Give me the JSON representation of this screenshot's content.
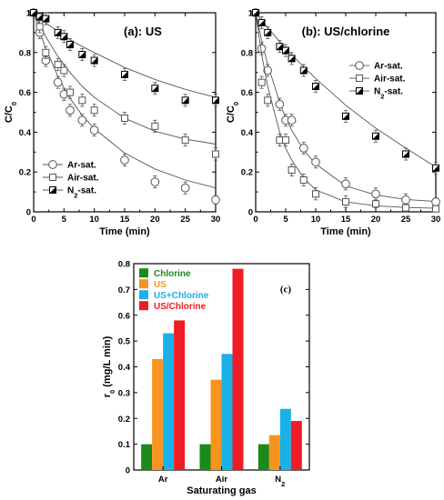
{
  "chart_data": [
    {
      "type": "line",
      "title": "(a): US",
      "xlabel": "Time (min)",
      "ylabel": "C/C",
      "ylabel_sub": "0",
      "xlim": [
        0,
        30
      ],
      "ylim": [
        0,
        1
      ],
      "xticks": [
        "0",
        "5",
        "10",
        "15",
        "20",
        "25",
        "30"
      ],
      "yticks": [
        "0",
        "0.2",
        "0.4",
        "0.6",
        "0.8",
        "1"
      ],
      "legend_position": "bottom-left",
      "x": [
        0,
        1,
        2,
        4,
        5,
        6,
        8,
        10,
        15,
        20,
        25,
        30
      ],
      "series": [
        {
          "name": "Ar-sat.",
          "marker": "circle",
          "values": [
            1.0,
            0.9,
            0.76,
            0.65,
            0.59,
            0.51,
            0.46,
            0.41,
            0.26,
            0.15,
            0.12,
            0.06
          ],
          "errors": [
            0.01,
            0.03,
            0.03,
            0.03,
            0.03,
            0.03,
            0.03,
            0.03,
            0.03,
            0.03,
            0.03,
            0.02
          ],
          "fit": [
            1.0,
            0.905,
            0.82,
            0.68,
            0.623,
            0.57,
            0.485,
            0.418,
            0.295,
            0.215,
            0.16,
            0.12
          ]
        },
        {
          "name": "Air-sat.",
          "marker": "square",
          "values": [
            1.0,
            0.93,
            0.8,
            0.74,
            0.71,
            0.6,
            0.56,
            0.51,
            0.47,
            0.43,
            0.36,
            0.29
          ],
          "errors": [
            0.01,
            0.03,
            0.03,
            0.03,
            0.03,
            0.03,
            0.03,
            0.03,
            0.03,
            0.03,
            0.03,
            0.03
          ],
          "fit": [
            1.0,
            0.94,
            0.88,
            0.78,
            0.74,
            0.7,
            0.63,
            0.575,
            0.47,
            0.405,
            0.365,
            0.34
          ]
        },
        {
          "name": "N₂-sat.",
          "label_base": "N",
          "label_sub": "2",
          "label_tail": "-sat.",
          "marker": "half-square",
          "values": [
            1.0,
            0.98,
            0.97,
            0.9,
            0.88,
            0.84,
            0.79,
            0.76,
            0.69,
            0.62,
            0.56,
            0.56
          ],
          "errors": [
            0.01,
            0.02,
            0.03,
            0.03,
            0.03,
            0.03,
            0.03,
            0.03,
            0.03,
            0.03,
            0.03,
            0.03
          ],
          "fit": [
            1.0,
            0.975,
            0.95,
            0.905,
            0.885,
            0.865,
            0.83,
            0.8,
            0.725,
            0.665,
            0.615,
            0.575
          ]
        }
      ]
    },
    {
      "type": "line",
      "title": "(b): US/chlorine",
      "xlabel": "Time (min)",
      "ylabel": "C/C",
      "ylabel_sub": "0",
      "xlim": [
        0,
        30
      ],
      "ylim": [
        0,
        1
      ],
      "xticks": [
        "0",
        "5",
        "10",
        "15",
        "20",
        "25",
        "30"
      ],
      "yticks": [
        "0",
        "0.2",
        "0.4",
        "0.6",
        "0.8",
        "1"
      ],
      "legend_position": "top-right",
      "x": [
        0,
        1,
        2,
        4,
        5,
        6,
        8,
        10,
        15,
        20,
        25,
        30
      ],
      "series": [
        {
          "name": "Ar-sat.",
          "marker": "circle",
          "values": [
            1.0,
            0.82,
            0.71,
            0.54,
            0.46,
            0.46,
            0.32,
            0.25,
            0.14,
            0.09,
            0.06,
            0.05
          ],
          "errors": [
            0.01,
            0.03,
            0.03,
            0.03,
            0.03,
            0.03,
            0.03,
            0.03,
            0.03,
            0.03,
            0.03,
            0.02
          ],
          "fit": [
            1.0,
            0.86,
            0.74,
            0.55,
            0.47,
            0.41,
            0.31,
            0.24,
            0.13,
            0.085,
            0.062,
            0.052
          ]
        },
        {
          "name": "Air-sat.",
          "marker": "square",
          "values": [
            1.0,
            0.65,
            0.56,
            0.36,
            0.36,
            0.21,
            0.16,
            0.09,
            0.05,
            0.04,
            0.02,
            0.015
          ],
          "errors": [
            0.01,
            0.03,
            0.03,
            0.03,
            0.03,
            0.03,
            0.03,
            0.03,
            0.03,
            0.02,
            0.02,
            0.01
          ],
          "fit": [
            1.0,
            0.79,
            0.63,
            0.4,
            0.32,
            0.26,
            0.17,
            0.11,
            0.05,
            0.03,
            0.022,
            0.018
          ]
        },
        {
          "name": "N₂-sat.",
          "label_base": "N",
          "label_sub": "2",
          "label_tail": "-sat.",
          "marker": "half-square",
          "values": [
            1.0,
            0.95,
            0.9,
            0.83,
            0.81,
            0.77,
            0.71,
            0.63,
            0.48,
            0.38,
            0.29,
            0.22
          ],
          "errors": [
            0.01,
            0.03,
            0.03,
            0.03,
            0.03,
            0.03,
            0.03,
            0.03,
            0.03,
            0.03,
            0.03,
            0.03
          ],
          "fit": [
            1.0,
            0.96,
            0.925,
            0.855,
            0.822,
            0.79,
            0.728,
            0.67,
            0.535,
            0.42,
            0.32,
            0.225
          ]
        }
      ]
    },
    {
      "type": "bar",
      "title": "(c)",
      "xlabel": "Saturating gas",
      "ylabel": "r",
      "ylabel_sub": "0",
      "ylabel_tail": " (mg/L min)",
      "ylim": [
        0,
        0.8
      ],
      "yticks": [
        "0",
        "0.1",
        "0.2",
        "0.3",
        "0.4",
        "0.5",
        "0.6",
        "0.7",
        "0.8"
      ],
      "legend_position": "top-left",
      "categories": [
        {
          "base": "Ar",
          "sub": ""
        },
        {
          "base": "Air",
          "sub": ""
        },
        {
          "base": "N",
          "sub": "2"
        }
      ],
      "series": [
        {
          "name": "Chlorine",
          "color": "#1a8a1a",
          "values": [
            0.1,
            0.1,
            0.1
          ]
        },
        {
          "name": "US",
          "color": "#f7941d",
          "values": [
            0.43,
            0.35,
            0.135
          ]
        },
        {
          "name": "US+Chlorine",
          "color": "#1ab0e8",
          "values": [
            0.53,
            0.45,
            0.237
          ]
        },
        {
          "name": "US/Chlorine",
          "color": "#ee1c24",
          "values": [
            0.58,
            0.78,
            0.19
          ]
        }
      ]
    }
  ]
}
